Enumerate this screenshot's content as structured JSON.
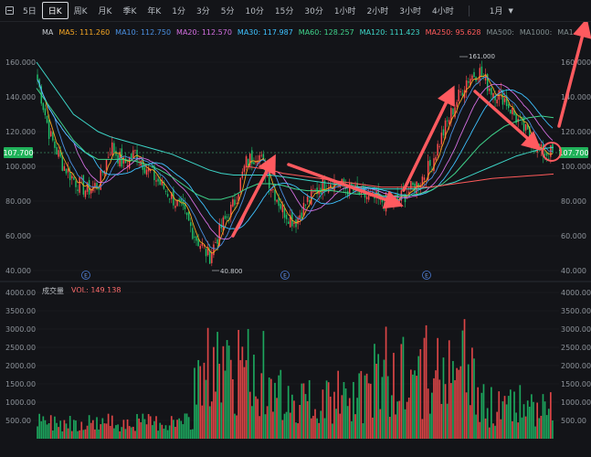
{
  "toolbar": {
    "intervals": [
      {
        "label": "5日",
        "active": false
      },
      {
        "label": "日K",
        "active": true
      },
      {
        "label": "周K",
        "active": false
      },
      {
        "label": "月K",
        "active": false
      },
      {
        "label": "季K",
        "active": false
      },
      {
        "label": "年K",
        "active": false
      },
      {
        "label": "1分",
        "active": false
      },
      {
        "label": "3分",
        "active": false
      },
      {
        "label": "5分",
        "active": false
      },
      {
        "label": "10分",
        "active": false
      },
      {
        "label": "15分",
        "active": false
      },
      {
        "label": "30分",
        "active": false
      },
      {
        "label": "1小时",
        "active": false
      },
      {
        "label": "2小时",
        "active": false
      },
      {
        "label": "3小时",
        "active": false
      },
      {
        "label": "4小时",
        "active": false
      }
    ],
    "dropdown_value": "1月"
  },
  "ma_legend": {
    "prefix": "MA",
    "items": [
      {
        "text": "MA5: 111.260",
        "color": "#f5a623"
      },
      {
        "text": "MA10: 112.750",
        "color": "#4a90e2"
      },
      {
        "text": "MA20: 112.570",
        "color": "#d36ee0"
      },
      {
        "text": "MA30: 117.987",
        "color": "#3ec2ff"
      },
      {
        "text": "MA60: 128.257",
        "color": "#3fd38b"
      },
      {
        "text": "MA120: 111.423",
        "color": "#3dd6c8"
      },
      {
        "text": "MA250: 95.628",
        "color": "#ff5a5a"
      },
      {
        "text": "MA500:",
        "color": "#7f8c8d"
      },
      {
        "text": "MA1000:",
        "color": "#7f8c8d"
      },
      {
        "text": "MA1",
        "color": "#7f8c8d"
      }
    ]
  },
  "volume_legend": {
    "title": "成交量",
    "value_text": "VOL: 149.138",
    "value_color": "#ff6b6b"
  },
  "price_axis_labels": [
    "160.000",
    "140.000",
    "120.000",
    "100.000",
    "80.000",
    "60.000",
    "40.000"
  ],
  "volume_axis_labels": [
    "4000.00",
    "3500.00",
    "3000.00",
    "2500.00",
    "2000.00",
    "1500.00",
    "1000.00",
    "500.00"
  ],
  "current_price": "107.700",
  "annotations": {
    "high_label": "161.000",
    "low_label": "40.800",
    "event_marker": "E"
  },
  "colors": {
    "up": "#ff4d4f",
    "down": "#1fbf6a",
    "arrow": "#ff5a5f",
    "price_tag": "#20b25a"
  },
  "chart_data": {
    "type": "candlestick",
    "price_ylim": [
      40,
      170
    ],
    "volume_ylim": [
      0,
      4000
    ],
    "closing_path": [
      150,
      118,
      102,
      92,
      86,
      90,
      112,
      101,
      108,
      98,
      90,
      82,
      72,
      58,
      48,
      65,
      78,
      102,
      108,
      90,
      75,
      68,
      80,
      88,
      92,
      88,
      85,
      82,
      80,
      79,
      84,
      90,
      100,
      118,
      135,
      150,
      155,
      144,
      140,
      128,
      118,
      108,
      107.7
    ],
    "moving_averages": {
      "MA60": [
        145,
        135,
        125,
        115,
        108,
        104,
        104,
        104,
        103,
        101,
        98,
        94,
        89,
        84,
        81,
        81,
        83,
        87,
        90,
        90,
        89,
        87,
        86,
        86,
        86,
        85,
        84,
        84,
        83,
        83,
        83,
        84,
        86,
        90,
        96,
        104,
        112,
        118,
        123,
        126,
        128,
        129,
        128
      ],
      "MA120": [
        160,
        150,
        140,
        130,
        125,
        120,
        117,
        115,
        113,
        111,
        109,
        107,
        104,
        101,
        98,
        96,
        95,
        95,
        95,
        95,
        94,
        93,
        92,
        91,
        90,
        89,
        88,
        88,
        87,
        87,
        87,
        87,
        88,
        89,
        91,
        94,
        97,
        100,
        103,
        106,
        108,
        110,
        111
      ],
      "MA250": [
        null,
        null,
        null,
        null,
        null,
        null,
        null,
        null,
        null,
        null,
        null,
        null,
        null,
        null,
        null,
        null,
        null,
        100,
        99,
        98,
        96,
        95,
        94,
        93,
        92,
        91,
        90,
        89,
        88,
        88,
        88,
        88,
        88,
        89,
        90,
        91,
        92,
        93,
        93.5,
        94,
        94.5,
        95,
        95.6
      ]
    },
    "current_price": 107.7,
    "high": 161,
    "low": 40.8
  }
}
